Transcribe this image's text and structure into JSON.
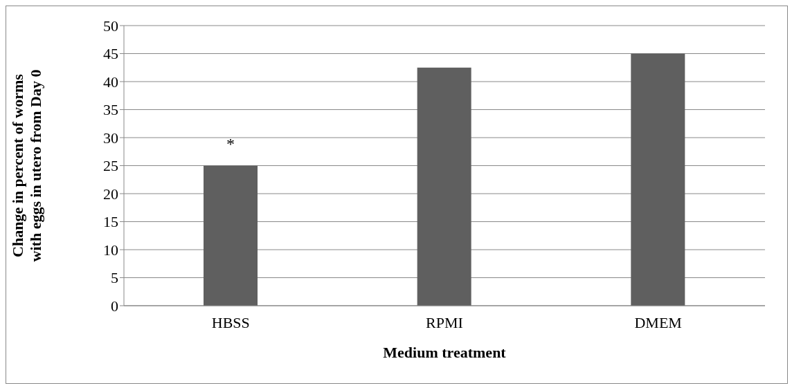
{
  "chart_data": {
    "type": "bar",
    "categories": [
      "HBSS",
      "RPMI",
      "DMEM"
    ],
    "values": [
      25,
      42.5,
      45
    ],
    "color": "#5f5f5f",
    "xlabel": "Medium treatment",
    "ylabel": "Change in percent of worms with eggs in utero from Day 0",
    "ylim": [
      0,
      50
    ],
    "yticks": [
      0,
      5,
      10,
      15,
      20,
      25,
      30,
      35,
      40,
      45,
      50
    ],
    "grid": "y",
    "annotations": [
      {
        "text": "*",
        "x": "HBSS",
        "y": 25
      }
    ]
  }
}
